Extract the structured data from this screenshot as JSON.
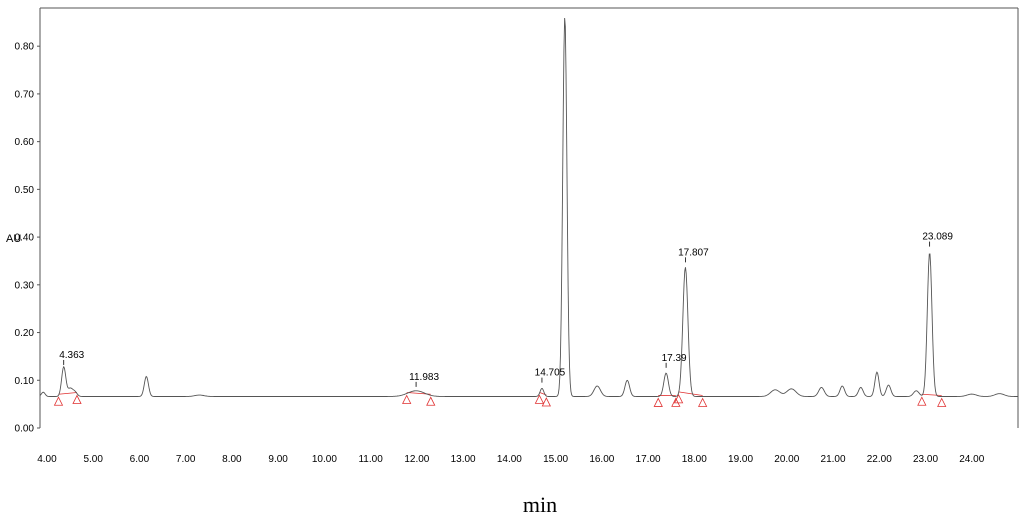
{
  "chart_data": {
    "type": "line",
    "title": "",
    "xlabel": "min",
    "ylabel": "AU",
    "xlim": [
      3.85,
      25.0
    ],
    "ylim": [
      0.0,
      0.88
    ],
    "grid": false,
    "legend": "none",
    "x_ticks": [
      "4.00",
      "5.00",
      "6.00",
      "7.00",
      "8.00",
      "9.00",
      "10.00",
      "11.00",
      "12.00",
      "13.00",
      "14.00",
      "15.00",
      "16.00",
      "17.00",
      "18.00",
      "19.00",
      "20.00",
      "21.00",
      "22.00",
      "23.00",
      "24.00"
    ],
    "y_ticks": [
      "0.00",
      "0.10",
      "0.20",
      "0.30",
      "0.40",
      "0.50",
      "0.60",
      "0.70",
      "0.80"
    ],
    "series": [
      {
        "color": "#555555",
        "baseline": 0.066,
        "x_range": [
          3.85,
          25.0
        ],
        "peaks": [
          {
            "x": 3.92,
            "height": 0.075,
            "width": 0.04
          },
          {
            "x": 4.363,
            "height": 0.128,
            "width": 0.045
          },
          {
            "x": 4.5,
            "height": 0.082,
            "width": 0.05
          },
          {
            "x": 4.6,
            "height": 0.076,
            "width": 0.05
          },
          {
            "x": 6.15,
            "height": 0.108,
            "width": 0.045
          },
          {
            "x": 7.3,
            "height": 0.069,
            "width": 0.1
          },
          {
            "x": 11.983,
            "height": 0.078,
            "width": 0.18
          },
          {
            "x": 14.705,
            "height": 0.083,
            "width": 0.04
          },
          {
            "x": 15.2,
            "height": 0.863,
            "width": 0.045
          },
          {
            "x": 15.9,
            "height": 0.088,
            "width": 0.07
          },
          {
            "x": 16.55,
            "height": 0.1,
            "width": 0.05
          },
          {
            "x": 17.39,
            "height": 0.115,
            "width": 0.05
          },
          {
            "x": 17.807,
            "height": 0.337,
            "width": 0.055
          },
          {
            "x": 19.75,
            "height": 0.08,
            "width": 0.1
          },
          {
            "x": 20.1,
            "height": 0.082,
            "width": 0.1
          },
          {
            "x": 20.75,
            "height": 0.085,
            "width": 0.06
          },
          {
            "x": 21.2,
            "height": 0.088,
            "width": 0.05
          },
          {
            "x": 21.6,
            "height": 0.085,
            "width": 0.05
          },
          {
            "x": 21.95,
            "height": 0.117,
            "width": 0.045
          },
          {
            "x": 22.2,
            "height": 0.09,
            "width": 0.05
          },
          {
            "x": 22.8,
            "height": 0.078,
            "width": 0.06
          },
          {
            "x": 23.089,
            "height": 0.368,
            "width": 0.05
          },
          {
            "x": 24.0,
            "height": 0.071,
            "width": 0.1
          },
          {
            "x": 24.6,
            "height": 0.072,
            "width": 0.1
          }
        ]
      }
    ],
    "peak_labels": [
      {
        "label": "4.363",
        "x": 4.363,
        "y": 0.13
      },
      {
        "label": "11.983",
        "x": 11.983,
        "y": 0.084
      },
      {
        "label": "14.705",
        "x": 14.705,
        "y": 0.093
      },
      {
        "label": "17.39",
        "x": 17.39,
        "y": 0.124
      },
      {
        "label": "17.807",
        "x": 17.807,
        "y": 0.345
      },
      {
        "label": "23.089",
        "x": 23.089,
        "y": 0.378
      }
    ],
    "integration_markers": {
      "color": "#e03030",
      "x": [
        4.25,
        4.65,
        11.78,
        12.3,
        14.65,
        14.8,
        17.22,
        17.6,
        17.66,
        18.18,
        22.92,
        23.35
      ],
      "segments": [
        [
          4.25,
          4.65
        ],
        [
          11.78,
          12.3
        ],
        [
          14.65,
          14.8
        ],
        [
          17.22,
          17.6
        ],
        [
          17.66,
          18.18
        ],
        [
          22.92,
          23.35
        ]
      ]
    }
  }
}
